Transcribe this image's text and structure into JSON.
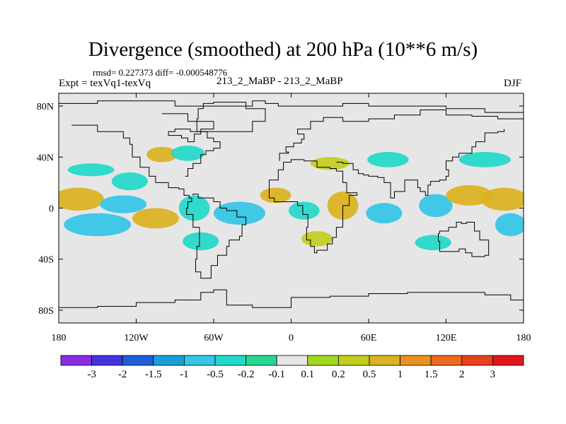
{
  "header": {
    "title": "Divergence (smoothed) at 200 hPa (10**6 m/s)",
    "stats": "rmsd= 0.227373 diff= -0.000548776",
    "experiment": "Expt = texVq1-texVq",
    "run": "213_2_MaBP - 213_2_MaBP",
    "season": "DJF"
  },
  "chart_data": {
    "type": "heatmap",
    "title": "Divergence (smoothed) at 200 hPa (10**6 m/s)",
    "subtitle": "213_2_MaBP - 213_2_MaBP",
    "season": "DJF",
    "xlim": [
      -180,
      180
    ],
    "ylim": [
      -90,
      90
    ],
    "x_ticks": [
      -180,
      -120,
      -60,
      0,
      60,
      120,
      180
    ],
    "x_tick_labels": [
      "180",
      "120W",
      "60W",
      "0",
      "60E",
      "120E",
      "180"
    ],
    "y_ticks": [
      80,
      40,
      0,
      -40,
      -80
    ],
    "y_tick_labels": [
      "80N",
      "40N",
      "0",
      "40S",
      "80S"
    ],
    "colorbar": {
      "levels": [
        "-3",
        "-2",
        "-1.5",
        "-1",
        "-0.5",
        "-0.2",
        "-0.1",
        "0.1",
        "0.2",
        "0.5",
        "1",
        "1.5",
        "2",
        "3"
      ],
      "colors": [
        "#8a2be2",
        "#4433dd",
        "#1e5fd9",
        "#17a0d8",
        "#33c6e6",
        "#22d9c9",
        "#25d892",
        "#e6e6e6",
        "#9fd81f",
        "#c3cd1d",
        "#dbb21f",
        "#e9901d",
        "#ec6a1c",
        "#e8401c",
        "#e2151d"
      ]
    },
    "features": [
      {
        "lon": -165,
        "lat": 7,
        "lon_half_width": 20,
        "lat_half_width": 9,
        "value": 0.7
      },
      {
        "lon": -130,
        "lat": 3,
        "lon_half_width": 18,
        "lat_half_width": 7,
        "value": -0.8
      },
      {
        "lon": -150,
        "lat": -13,
        "lon_half_width": 26,
        "lat_half_width": 9,
        "value": -0.8
      },
      {
        "lon": -105,
        "lat": -8,
        "lon_half_width": 18,
        "lat_half_width": 8,
        "value": 0.6
      },
      {
        "lon": -125,
        "lat": 21,
        "lon_half_width": 14,
        "lat_half_width": 7,
        "value": -0.3
      },
      {
        "lon": -75,
        "lat": 0,
        "lon_half_width": 12,
        "lat_half_width": 10,
        "value": -0.5
      },
      {
        "lon": -40,
        "lat": -4,
        "lon_half_width": 20,
        "lat_half_width": 9,
        "value": -0.9
      },
      {
        "lon": -12,
        "lat": 10,
        "lon_half_width": 12,
        "lat_half_width": 6,
        "value": 0.5
      },
      {
        "lon": 10,
        "lat": -2,
        "lon_half_width": 12,
        "lat_half_width": 7,
        "value": -0.5
      },
      {
        "lon": 40,
        "lat": 2,
        "lon_half_width": 12,
        "lat_half_width": 11,
        "value": 0.5
      },
      {
        "lon": 72,
        "lat": -4,
        "lon_half_width": 14,
        "lat_half_width": 8,
        "value": -0.6
      },
      {
        "lon": 112,
        "lat": 2,
        "lon_half_width": 13,
        "lat_half_width": 9,
        "value": -0.7
      },
      {
        "lon": 138,
        "lat": 10,
        "lon_half_width": 18,
        "lat_half_width": 8,
        "value": 0.5
      },
      {
        "lon": 165,
        "lat": 7,
        "lon_half_width": 18,
        "lat_half_width": 9,
        "value": 0.5
      },
      {
        "lon": 170,
        "lat": -13,
        "lon_half_width": 12,
        "lat_half_width": 9,
        "value": -1.0
      },
      {
        "lon": -100,
        "lat": 42,
        "lon_half_width": 12,
        "lat_half_width": 6,
        "value": 0.6
      },
      {
        "lon": -80,
        "lat": 43,
        "lon_half_width": 13,
        "lat_half_width": 6,
        "value": -0.5
      },
      {
        "lon": -155,
        "lat": 30,
        "lon_half_width": 18,
        "lat_half_width": 5,
        "value": -0.4
      },
      {
        "lon": 30,
        "lat": 35,
        "lon_half_width": 15,
        "lat_half_width": 5,
        "value": 0.4
      },
      {
        "lon": 75,
        "lat": 38,
        "lon_half_width": 16,
        "lat_half_width": 6,
        "value": -0.4
      },
      {
        "lon": 150,
        "lat": 38,
        "lon_half_width": 20,
        "lat_half_width": 6,
        "value": -0.4
      },
      {
        "lon": -70,
        "lat": -26,
        "lon_half_width": 14,
        "lat_half_width": 7,
        "value": -0.4
      },
      {
        "lon": 20,
        "lat": -24,
        "lon_half_width": 12,
        "lat_half_width": 6,
        "value": 0.4
      },
      {
        "lon": 110,
        "lat": -27,
        "lon_half_width": 14,
        "lat_half_width": 6,
        "value": -0.4
      }
    ]
  }
}
